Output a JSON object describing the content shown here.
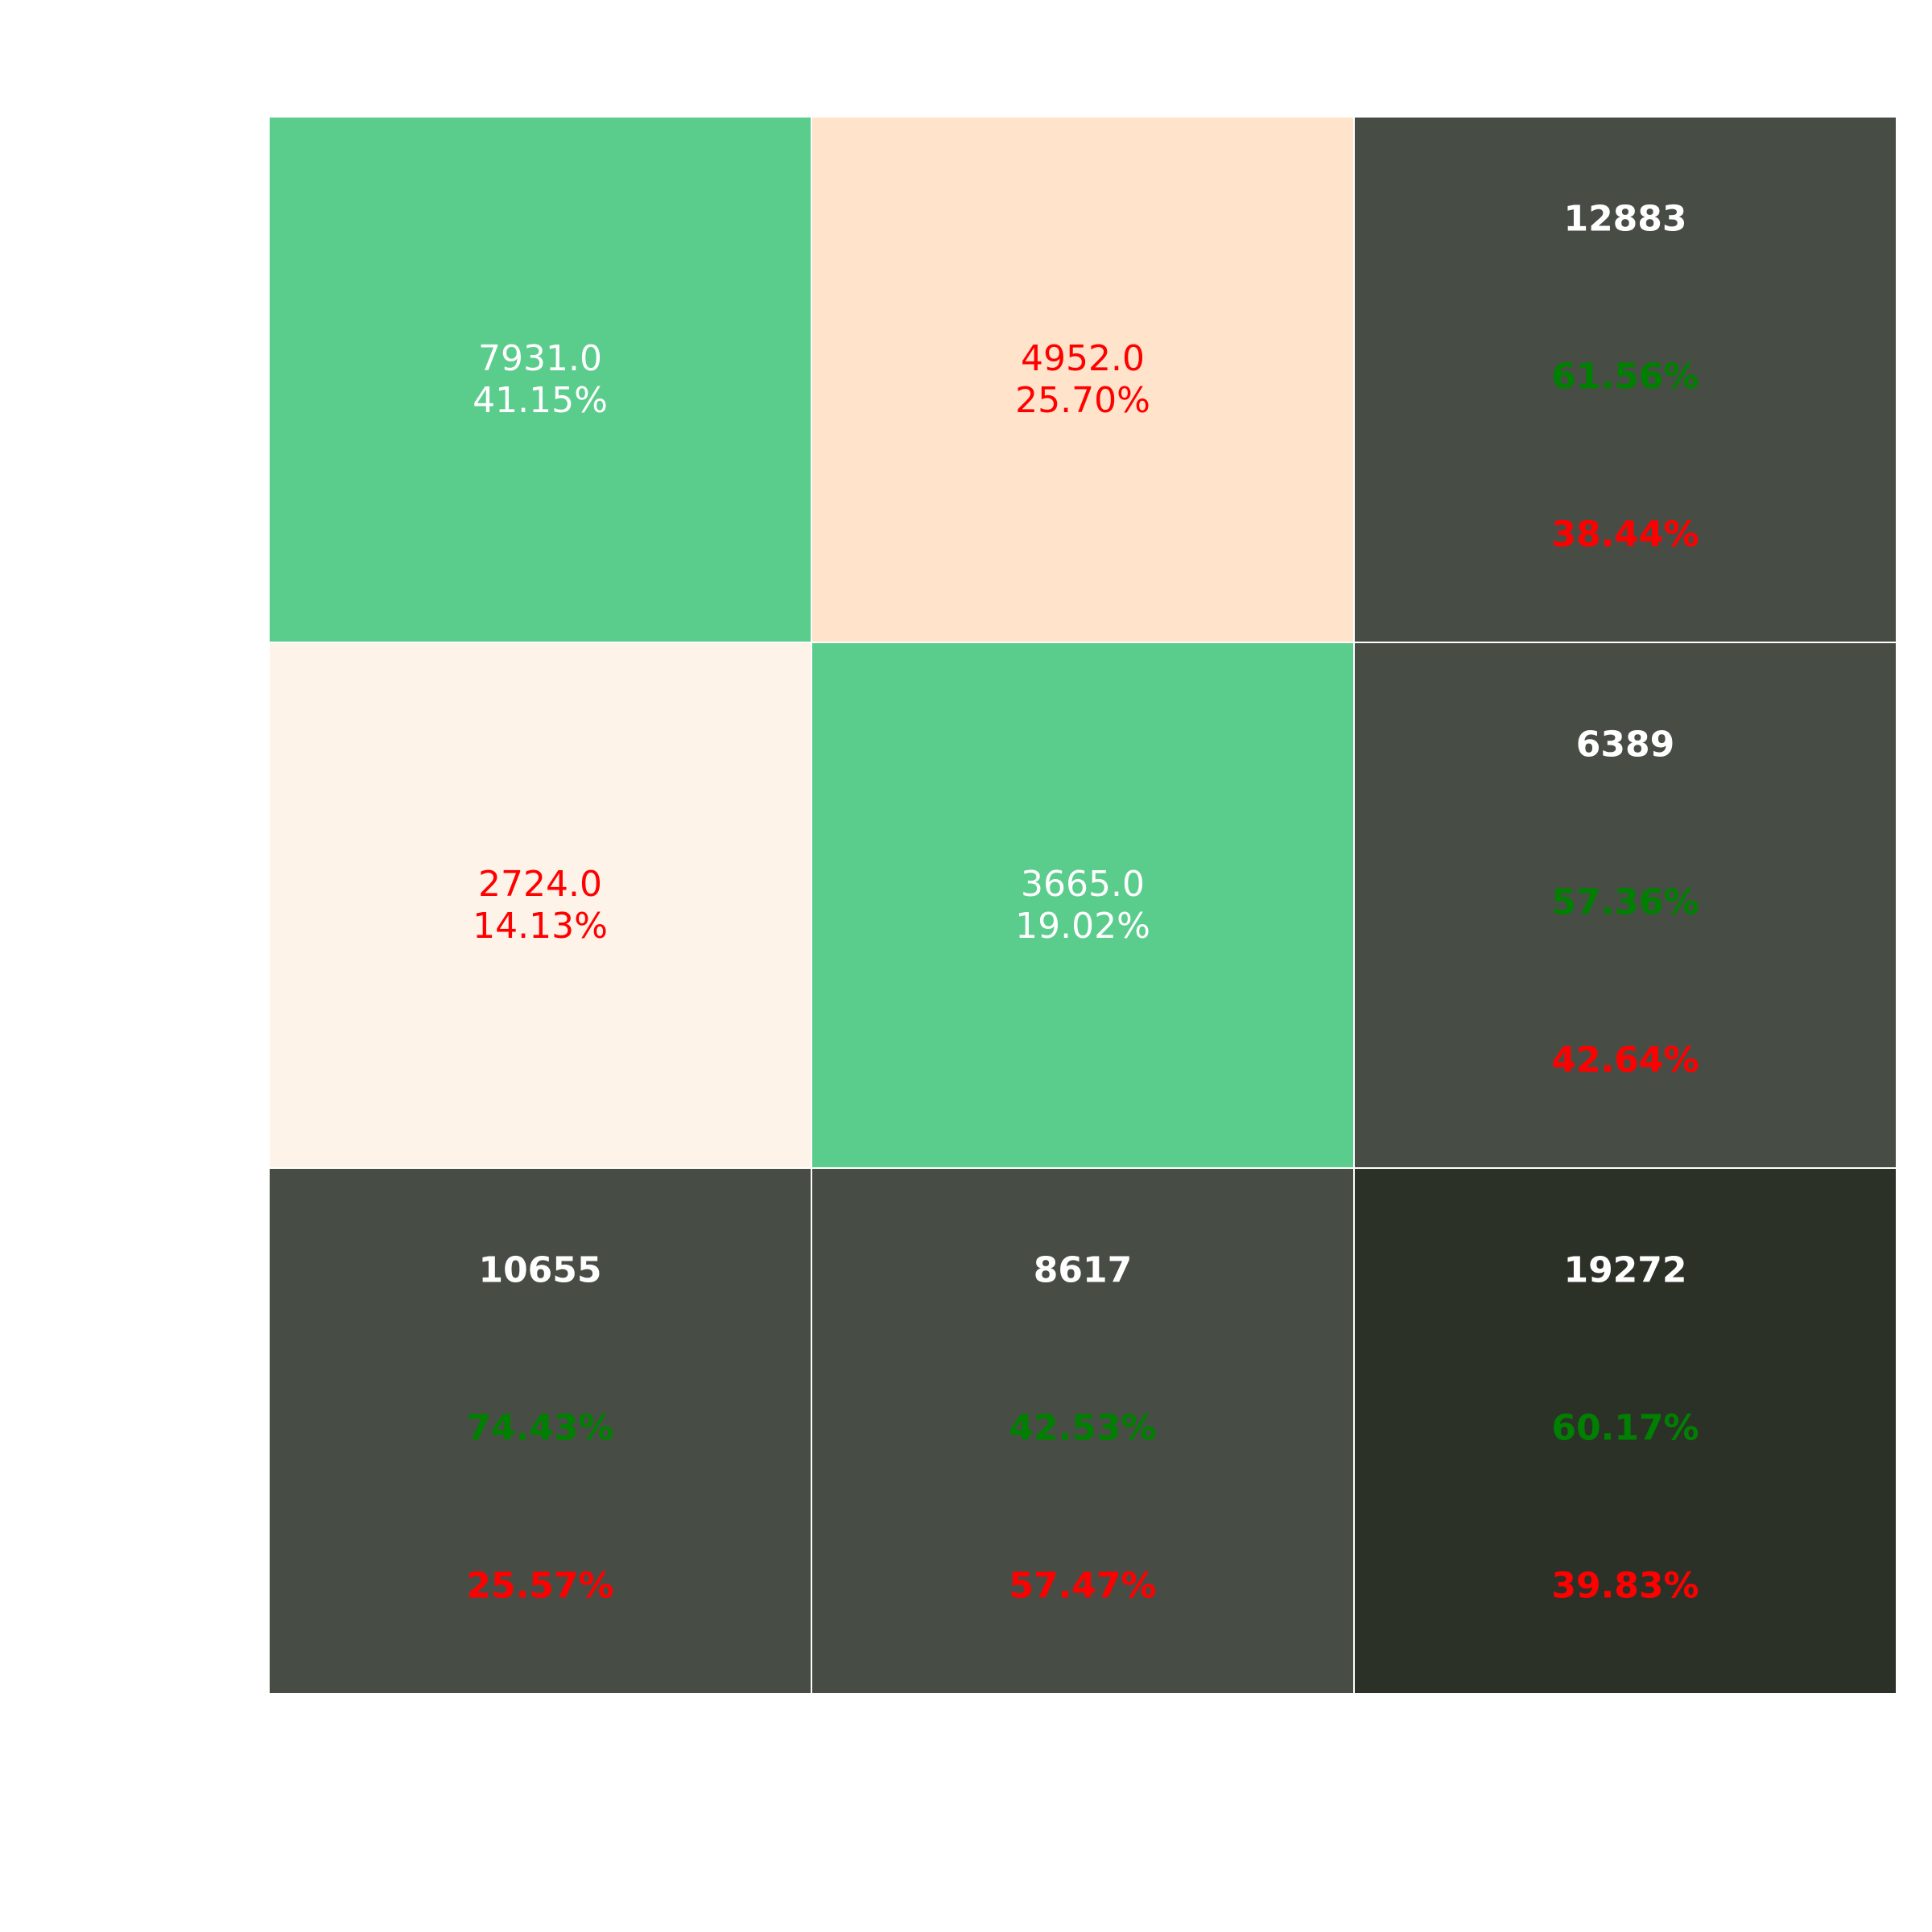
{
  "chart_data": {
    "type": "heatmap",
    "title": "",
    "xlabel": "",
    "ylabel": "",
    "rows": 3,
    "cols": 3,
    "grid": true,
    "colors": {
      "correct": "#5ACC8B",
      "incorrect_high": "#FFE4CB",
      "incorrect_low": "#FEF3E8",
      "summary": "#474D45",
      "total": "#2C3128",
      "cell_border": "#FFFFFF",
      "text_light": "#FFFFFF",
      "text_error": "#FF0000",
      "text_good": "#008000"
    },
    "cells": [
      {
        "row": 0,
        "col": 0,
        "kind": "correct",
        "count": "7931.0",
        "percent": "41.15%"
      },
      {
        "row": 0,
        "col": 1,
        "kind": "incorrect_high",
        "count": "4952.0",
        "percent": "25.70%"
      },
      {
        "row": 1,
        "col": 0,
        "kind": "incorrect_low",
        "count": "2724.0",
        "percent": "14.13%"
      },
      {
        "row": 1,
        "col": 1,
        "kind": "correct",
        "count": "3665.0",
        "percent": "19.02%"
      }
    ],
    "summaries": [
      {
        "row": 0,
        "col": 2,
        "kind": "summary",
        "total": "12883",
        "good": "61.56%",
        "bad": "38.44%"
      },
      {
        "row": 1,
        "col": 2,
        "kind": "summary",
        "total": "6389",
        "good": "57.36%",
        "bad": "42.64%"
      },
      {
        "row": 2,
        "col": 0,
        "kind": "summary",
        "total": "10655",
        "good": "74.43%",
        "bad": "25.57%"
      },
      {
        "row": 2,
        "col": 1,
        "kind": "summary",
        "total": "8617",
        "good": "42.53%",
        "bad": "57.47%"
      },
      {
        "row": 2,
        "col": 2,
        "kind": "total",
        "total": "19272",
        "good": "60.17%",
        "bad": "39.83%"
      }
    ]
  }
}
